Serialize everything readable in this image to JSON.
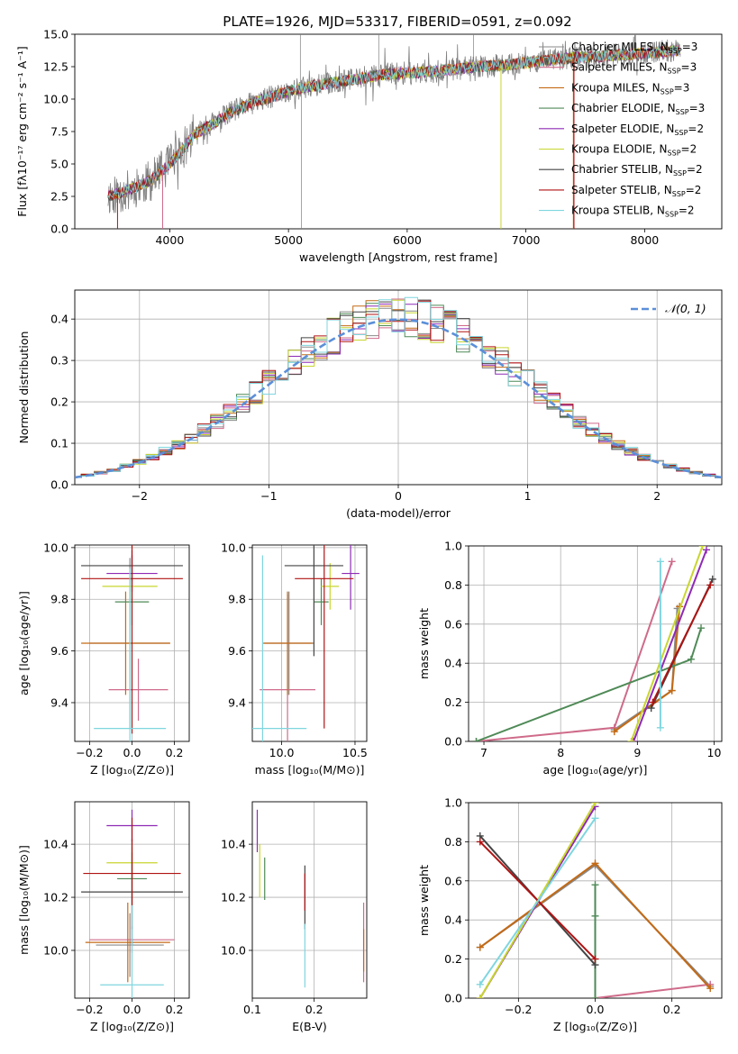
{
  "figure": {
    "title": "PLATE=1926, MJD=53317, FIBERID=0591, z=0.092"
  },
  "chart_data": [
    {
      "id": "spectrum",
      "type": "line",
      "xlabel": "wavelength [Angstrom, rest frame]",
      "ylabel": "Flux [fλ10⁻¹⁷ erg cm⁻² s⁻¹ A⁻¹]",
      "xlim": [
        3200,
        8650
      ],
      "ylim": [
        0,
        15
      ],
      "xticks": [
        4000,
        5000,
        6000,
        7000,
        8000
      ],
      "yticks": [
        0.0,
        2.5,
        5.0,
        7.5,
        10.0,
        12.5,
        15.0
      ],
      "ytick_labels": [
        "0.0",
        "2.5",
        "5.0",
        "7.5",
        "10.0",
        "12.5",
        "15.0"
      ],
      "legend_position": "top-right",
      "grid": false,
      "data_trend": {
        "x": [
          3500,
          3600,
          3700,
          3800,
          3900,
          4000,
          4100,
          4200,
          4300,
          4400,
          4500,
          4600,
          4700,
          4800,
          4900,
          5000,
          5200,
          5400,
          5600,
          5800,
          6000,
          6200,
          6400,
          6600,
          6800,
          7000,
          7200,
          7400,
          7600,
          7800,
          8000,
          8200,
          8300
        ],
        "y": [
          2.6,
          2.8,
          3.2,
          3.5,
          4.2,
          5.0,
          6.0,
          7.2,
          7.8,
          8.3,
          8.9,
          9.3,
          9.7,
          10.0,
          10.3,
          10.6,
          11.0,
          11.3,
          11.6,
          11.9,
          12.0,
          12.1,
          12.3,
          12.5,
          12.6,
          12.8,
          13.0,
          13.2,
          13.3,
          13.4,
          13.5,
          13.7,
          13.8
        ]
      },
      "series": [
        {
          "name": "Chabrier MILES, N_SSP=3",
          "label": "Chabrier MILES, N",
          "sub": "SSP",
          "suffix": "=3",
          "color": "#8a8a8a"
        },
        {
          "name": "Salpeter MILES, N_SSP=3",
          "label": "Salpeter MILES, N",
          "sub": "SSP",
          "suffix": "=3",
          "color": "#cf6b8a"
        },
        {
          "name": "Kroupa MILES, N_SSP=3",
          "label": "Kroupa MILES, N",
          "sub": "SSP",
          "suffix": "=3",
          "color": "#c46a14"
        },
        {
          "name": "Chabrier ELODIE, N_SSP=3",
          "label": "Chabrier ELODIE, N",
          "sub": "SSP",
          "suffix": "=3",
          "color": "#4f8a57"
        },
        {
          "name": "Salpeter ELODIE, N_SSP=2",
          "label": "Salpeter ELODIE, N",
          "sub": "SSP",
          "suffix": "=2",
          "color": "#8e2ab5"
        },
        {
          "name": "Kroupa ELODIE, N_SSP=2",
          "label": "Kroupa ELODIE, N",
          "sub": "SSP",
          "suffix": "=2",
          "color": "#c8d52f"
        },
        {
          "name": "Chabrier STELIB, N_SSP=2",
          "label": "Chabrier STELIB, N",
          "sub": "SSP",
          "suffix": "=2",
          "color": "#444444"
        },
        {
          "name": "Salpeter STELIB, N_SSP=2",
          "label": "Salpeter STELIB, N",
          "sub": "SSP",
          "suffix": "=2",
          "color": "#b01313"
        },
        {
          "name": "Kroupa STELIB, N_SSP=2",
          "label": "Kroupa STELIB, N",
          "sub": "SSP",
          "suffix": "=2",
          "color": "#7fd6df"
        }
      ]
    },
    {
      "id": "residuals",
      "type": "histogram",
      "xlabel": "(data-model)/error",
      "ylabel": "Normed distribution",
      "xlim": [
        -2.5,
        2.5
      ],
      "ylim": [
        0,
        0.47
      ],
      "xticks": [
        -2,
        -1,
        0,
        1,
        2
      ],
      "xtick_labels": [
        "−2",
        "−1",
        "0",
        "1",
        "2"
      ],
      "yticks": [
        0.0,
        0.1,
        0.2,
        0.3,
        0.4
      ],
      "ytick_labels": [
        "0.0",
        "0.1",
        "0.2",
        "0.3",
        "0.4"
      ],
      "grid": true,
      "legend_position": "top-right",
      "reference_curve": {
        "name": "𝒩(0, 1)",
        "mean": 0,
        "sigma": 1,
        "color": "#5b8fd9"
      }
    },
    {
      "id": "age_vs_Z",
      "type": "errorbar",
      "xlabel": "Z [log₁₀(Z/Z⊙)]",
      "ylabel": "age  [log₁₀(age/yr)]",
      "xlim": [
        -0.27,
        0.27
      ],
      "ylim": [
        9.25,
        10.01
      ],
      "xticks": [
        -0.2,
        0.0,
        0.2
      ],
      "xtick_labels": [
        "−0.2",
        "0.0",
        "0.2"
      ],
      "yticks": [
        9.4,
        9.6,
        9.8,
        10.0
      ],
      "ytick_labels": [
        "9.4",
        "9.6",
        "9.8",
        "10.0"
      ],
      "grid": true,
      "points": [
        {
          "x": -0.01,
          "y": 9.63,
          "xerr": 0.19,
          "yerr": 0.33,
          "color": "#8a8a8a"
        },
        {
          "x": 0.03,
          "y": 9.45,
          "xerr": 0.14,
          "yerr": 0.12,
          "color": "#cf6b8a"
        },
        {
          "x": -0.03,
          "y": 9.63,
          "xerr": 0.21,
          "yerr": 0.2,
          "color": "#c46a14"
        },
        {
          "x": 0.0,
          "y": 9.79,
          "xerr": 0.08,
          "yerr": 0.09,
          "color": "#4f8a57"
        },
        {
          "x": 0.0,
          "y": 9.9,
          "xerr": 0.12,
          "yerr": 0.07,
          "color": "#8e2ab5"
        },
        {
          "x": -0.01,
          "y": 9.85,
          "xerr": 0.13,
          "yerr": 0.05,
          "color": "#c8d52f"
        },
        {
          "x": 0.0,
          "y": 9.93,
          "xerr": 0.24,
          "yerr": 0.06,
          "color": "#444444"
        },
        {
          "x": 0.0,
          "y": 9.88,
          "xerr": 0.24,
          "yerr": 0.6,
          "color": "#b01313"
        },
        {
          "x": -0.01,
          "y": 9.3,
          "xerr": 0.17,
          "yerr": 0.62,
          "color": "#7fd6df"
        }
      ]
    },
    {
      "id": "age_vs_mass",
      "type": "errorbar",
      "xlabel": "mass [log₁₀(M/M⊙)]",
      "ylabel": "",
      "xlim": [
        9.8,
        10.58
      ],
      "ylim": [
        9.25,
        10.01
      ],
      "xticks": [
        10.0,
        10.5
      ],
      "xtick_labels": [
        "10.0",
        "10.5"
      ],
      "yticks": [
        9.4,
        9.6,
        9.8,
        10.0
      ],
      "ytick_labels": [
        "9.4",
        "9.6",
        "9.8",
        "10.0"
      ],
      "grid": true,
      "points": [
        {
          "x": 10.05,
          "y": 9.63,
          "xerr": 0.17,
          "yerr": 0.2,
          "color": "#8a8a8a"
        },
        {
          "x": 10.04,
          "y": 9.45,
          "xerr": 0.19,
          "yerr": 0.37,
          "color": "#cf6b8a"
        },
        {
          "x": 10.04,
          "y": 9.63,
          "xerr": 0.17,
          "yerr": 0.2,
          "color": "#c46a14"
        },
        {
          "x": 10.27,
          "y": 9.79,
          "xerr": 0.05,
          "yerr": 0.09,
          "color": "#4f8a57"
        },
        {
          "x": 10.47,
          "y": 9.9,
          "xerr": 0.06,
          "yerr": 0.14,
          "color": "#8e2ab5"
        },
        {
          "x": 10.33,
          "y": 9.85,
          "xerr": 0.06,
          "yerr": 0.09,
          "color": "#c8d52f"
        },
        {
          "x": 10.22,
          "y": 9.93,
          "xerr": 0.2,
          "yerr": 0.35,
          "color": "#444444"
        },
        {
          "x": 10.29,
          "y": 9.88,
          "xerr": 0.2,
          "yerr": 0.58,
          "color": "#b01313"
        },
        {
          "x": 9.87,
          "y": 9.3,
          "xerr": 0.3,
          "yerr": 0.67,
          "color": "#7fd6df"
        }
      ]
    },
    {
      "id": "mass_weight_vs_age",
      "type": "line",
      "xlabel": "age  [log₁₀(age/yr)]",
      "ylabel": "mass weight",
      "xlim": [
        6.8,
        10.1
      ],
      "ylim": [
        0,
        1
      ],
      "xticks": [
        7,
        8,
        9,
        10
      ],
      "yticks": [
        0.0,
        0.2,
        0.4,
        0.6,
        0.8,
        1.0
      ],
      "ytick_labels": [
        "0.0",
        "0.2",
        "0.4",
        "0.6",
        "0.8",
        "1.0"
      ],
      "grid": true,
      "series": [
        {
          "name": "Chabrier MILES",
          "color": "#8a8a8a",
          "x": [
            8.7,
            9.45,
            9.52
          ],
          "y": [
            0.06,
            0.26,
            0.68
          ]
        },
        {
          "name": "Salpeter MILES",
          "color": "#cf6b8a",
          "x": [
            6.9,
            8.7,
            9.45
          ],
          "y": [
            0.0,
            0.07,
            0.92
          ]
        },
        {
          "name": "Kroupa MILES",
          "color": "#c46a14",
          "x": [
            8.7,
            9.45,
            9.55
          ],
          "y": [
            0.05,
            0.26,
            0.69
          ]
        },
        {
          "name": "Chabrier ELODIE",
          "color": "#4f8a57",
          "x": [
            6.9,
            9.7,
            9.83
          ],
          "y": [
            0.0,
            0.42,
            0.58
          ]
        },
        {
          "name": "Salpeter ELODIE",
          "color": "#8e2ab5",
          "x": [
            8.95,
            9.9
          ],
          "y": [
            0.0,
            0.98
          ]
        },
        {
          "name": "Kroupa ELODIE",
          "color": "#c8d52f",
          "x": [
            8.92,
            9.85
          ],
          "y": [
            0.0,
            1.0
          ]
        },
        {
          "name": "Chabrier STELIB",
          "color": "#444444",
          "x": [
            9.18,
            9.98
          ],
          "y": [
            0.17,
            0.83
          ]
        },
        {
          "name": "Salpeter STELIB",
          "color": "#b01313",
          "x": [
            9.2,
            9.95
          ],
          "y": [
            0.2,
            0.8
          ]
        },
        {
          "name": "Kroupa STELIB",
          "color": "#7fd6df",
          "x": [
            9.3,
            9.3
          ],
          "y": [
            0.07,
            0.92
          ]
        }
      ]
    },
    {
      "id": "mass_vs_Z",
      "type": "errorbar",
      "xlabel": "Z [log₁₀(Z/Z⊙)]",
      "ylabel": "mass [log₁₀(M/M⊙)]",
      "xlim": [
        -0.27,
        0.27
      ],
      "ylim": [
        9.82,
        10.56
      ],
      "xticks": [
        -0.2,
        0.0,
        0.2
      ],
      "xtick_labels": [
        "−0.2",
        "0.0",
        "0.2"
      ],
      "yticks": [
        10.0,
        10.2,
        10.4
      ],
      "ytick_labels": [
        "10.0",
        "10.2",
        "10.4"
      ],
      "grid": true,
      "points": [
        {
          "x": -0.01,
          "y": 10.02,
          "xerr": 0.16,
          "yerr": 0.12,
          "color": "#8a8a8a"
        },
        {
          "x": 0.0,
          "y": 10.04,
          "xerr": 0.2,
          "yerr": 0.05,
          "color": "#cf6b8a"
        },
        {
          "x": -0.02,
          "y": 10.03,
          "xerr": 0.2,
          "yerr": 0.15,
          "color": "#c46a14"
        },
        {
          "x": 0.0,
          "y": 10.27,
          "xerr": 0.07,
          "yerr": 0.1,
          "color": "#4f8a57"
        },
        {
          "x": 0.0,
          "y": 10.47,
          "xerr": 0.12,
          "yerr": 0.06,
          "color": "#8e2ab5"
        },
        {
          "x": 0.0,
          "y": 10.33,
          "xerr": 0.12,
          "yerr": 0.06,
          "color": "#c8d52f"
        },
        {
          "x": 0.0,
          "y": 10.22,
          "xerr": 0.24,
          "yerr": 0.2,
          "color": "#444444"
        },
        {
          "x": 0.0,
          "y": 10.29,
          "xerr": 0.23,
          "yerr": 0.21,
          "color": "#b01313"
        },
        {
          "x": 0.0,
          "y": 9.87,
          "xerr": 0.15,
          "yerr": 0.3,
          "color": "#7fd6df"
        }
      ]
    },
    {
      "id": "mass_vs_ebv",
      "type": "errorbar",
      "xlabel": "E(B-V)",
      "ylabel": "",
      "xlim": [
        0.1,
        0.285
      ],
      "ylim": [
        9.82,
        10.56
      ],
      "xticks": [
        0.1,
        0.2
      ],
      "xtick_labels": [
        "0.1",
        "0.2"
      ],
      "yticks": [
        10.0,
        10.2,
        10.4
      ],
      "ytick_labels": [
        "10.0",
        "10.2",
        "10.4"
      ],
      "grid": true,
      "points": [
        {
          "x": 0.28,
          "y": 10.03,
          "xerr": 0.0,
          "yerr": 0.15,
          "color": "#cf6b8a"
        },
        {
          "x": 0.28,
          "y": 10.0,
          "xerr": 0.0,
          "yerr": 0.08,
          "color": "#c46a14"
        },
        {
          "x": 0.12,
          "y": 10.27,
          "xerr": 0.0,
          "yerr": 0.08,
          "color": "#4f8a57"
        },
        {
          "x": 0.108,
          "y": 10.45,
          "xerr": 0.0,
          "yerr": 0.08,
          "color": "#8e2ab5"
        },
        {
          "x": 0.112,
          "y": 10.3,
          "xerr": 0.0,
          "yerr": 0.1,
          "color": "#c8d52f"
        },
        {
          "x": 0.185,
          "y": 10.2,
          "xerr": 0.0,
          "yerr": 0.12,
          "color": "#444444"
        },
        {
          "x": 0.185,
          "y": 10.22,
          "xerr": 0.0,
          "yerr": 0.07,
          "color": "#b01313"
        },
        {
          "x": 0.185,
          "y": 9.98,
          "xerr": 0.0,
          "yerr": 0.12,
          "color": "#7fd6df"
        }
      ]
    },
    {
      "id": "mass_weight_vs_Z",
      "type": "line",
      "xlabel": "Z [log₁₀(Z/Z⊙)]",
      "ylabel": "mass weight",
      "xlim": [
        -0.33,
        0.33
      ],
      "ylim": [
        0,
        1
      ],
      "xticks": [
        -0.2,
        0.0,
        0.2
      ],
      "xtick_labels": [
        "−0.2",
        "0.0",
        "0.2"
      ],
      "yticks": [
        0.0,
        0.2,
        0.4,
        0.6,
        0.8,
        1.0
      ],
      "ytick_labels": [
        "0.0",
        "0.2",
        "0.4",
        "0.6",
        "0.8",
        "1.0"
      ],
      "grid": true,
      "series": [
        {
          "name": "Chabrier MILES",
          "color": "#8a8a8a",
          "x": [
            -0.3,
            0.0,
            0.3
          ],
          "y": [
            0.26,
            0.68,
            0.06
          ]
        },
        {
          "name": "Salpeter MILES",
          "color": "#cf6b8a",
          "x": [
            0.0,
            0.3
          ],
          "y": [
            0.0,
            0.07
          ]
        },
        {
          "name": "Kroupa MILES",
          "color": "#c46a14",
          "x": [
            -0.3,
            0.0,
            0.3
          ],
          "y": [
            0.26,
            0.69,
            0.05
          ]
        },
        {
          "name": "Chabrier ELODIE",
          "color": "#4f8a57",
          "x": [
            0.0,
            0.0,
            0.0
          ],
          "y": [
            0.0,
            0.42,
            0.58
          ]
        },
        {
          "name": "Salpeter ELODIE",
          "color": "#8e2ab5",
          "x": [
            -0.3,
            0.0
          ],
          "y": [
            0.0,
            0.98
          ]
        },
        {
          "name": "Kroupa ELODIE",
          "color": "#c8d52f",
          "x": [
            -0.3,
            0.0
          ],
          "y": [
            0.0,
            1.0
          ]
        },
        {
          "name": "Chabrier STELIB",
          "color": "#444444",
          "x": [
            -0.3,
            0.0
          ],
          "y": [
            0.83,
            0.17
          ]
        },
        {
          "name": "Salpeter STELIB",
          "color": "#b01313",
          "x": [
            -0.3,
            0.0
          ],
          "y": [
            0.8,
            0.2
          ]
        },
        {
          "name": "Kroupa STELIB",
          "color": "#7fd6df",
          "x": [
            -0.3,
            0.0
          ],
          "y": [
            0.07,
            0.92
          ]
        }
      ]
    }
  ]
}
